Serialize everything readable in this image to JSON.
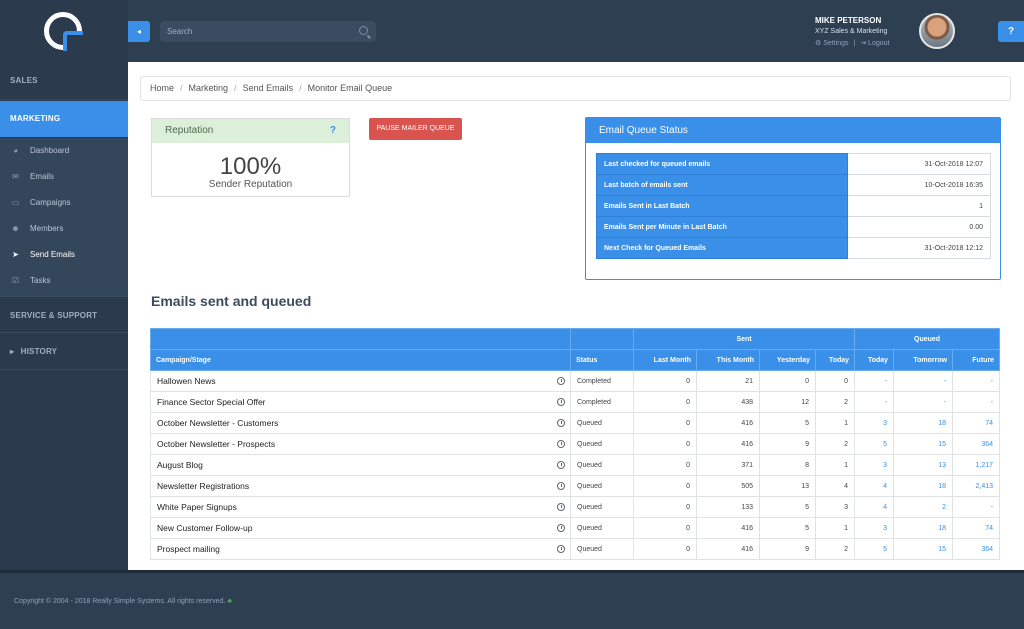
{
  "sidebar": {
    "sections": {
      "sales": "SALES",
      "marketing": "MARKETING",
      "service": "SERVICE & SUPPORT",
      "history": "HISTORY"
    },
    "items": [
      {
        "label": "Dashboard",
        "icon": "dashboard-icon",
        "glyph": "◕"
      },
      {
        "label": "Emails",
        "icon": "envelope-icon",
        "glyph": "✉"
      },
      {
        "label": "Campaigns",
        "icon": "inbox-icon",
        "glyph": "▭"
      },
      {
        "label": "Members",
        "icon": "users-icon",
        "glyph": "☻"
      },
      {
        "label": "Send Emails",
        "icon": "send-icon",
        "glyph": "➤"
      },
      {
        "label": "Tasks",
        "icon": "checkbox-icon",
        "glyph": "☑"
      }
    ],
    "active_item": "Send Emails",
    "history_chevron": "▸"
  },
  "topbar": {
    "collapse_glyph": "◂",
    "search_placeholder": "Search",
    "user_name": "MIKE PETERSON",
    "company": "XYZ Sales & Marketing",
    "settings_label": "⚙ Settings",
    "divider": "|",
    "logout_label": "⇥ Logout",
    "help_glyph": "?"
  },
  "breadcrumb": {
    "items": [
      "Home",
      "Marketing",
      "Send Emails",
      "Monitor Email Queue"
    ],
    "separator": "/"
  },
  "reputation": {
    "title": "Reputation",
    "help": "?",
    "value": "100%",
    "label": "Sender Reputation"
  },
  "pause_button": "PAUSE MAILER QUEUE",
  "email_queue_status": {
    "title": "Email Queue Status",
    "rows": [
      {
        "key": "Last checked for queued emails",
        "value": "31-Oct-2018 12:07"
      },
      {
        "key": "Last batch of emails sent",
        "value": "10-Oct-2018 16:35"
      },
      {
        "key": "Emails Sent in Last Batch",
        "value": "1"
      },
      {
        "key": "Emails Sent per Minute in Last Batch",
        "value": "0.00"
      },
      {
        "key": "Next Check for Queued Emails",
        "value": "31-Oct-2018 12:12"
      }
    ]
  },
  "section_title": "Emails sent and queued",
  "queue_table": {
    "group_headers": {
      "sent": "Sent",
      "queued": "Queued"
    },
    "headers": {
      "campaign": "Campaign/Stage",
      "status": "Status",
      "last_month": "Last Month",
      "this_month": "This Month",
      "yesterday": "Yesterday",
      "today": "Today",
      "q_today": "Today",
      "q_tomorrow": "Tomorrow",
      "q_future": "Future"
    },
    "rows": [
      {
        "name": "Hallowen News",
        "status": "Completed",
        "last_month": "0",
        "this_month": "21",
        "yesterday": "0",
        "today": "0",
        "q_today": "-",
        "q_tomorrow": "-",
        "q_future": "-"
      },
      {
        "name": "Finance Sector Special Offer",
        "status": "Completed",
        "last_month": "0",
        "this_month": "438",
        "yesterday": "12",
        "today": "2",
        "q_today": "-",
        "q_tomorrow": "-",
        "q_future": "-"
      },
      {
        "name": "October Newsletter - Customers",
        "status": "Queued",
        "last_month": "0",
        "this_month": "416",
        "yesterday": "5",
        "today": "1",
        "q_today": "3",
        "q_tomorrow": "18",
        "q_future": "74"
      },
      {
        "name": "October Newsletter - Prospects",
        "status": "Queued",
        "last_month": "0",
        "this_month": "416",
        "yesterday": "9",
        "today": "2",
        "q_today": "5",
        "q_tomorrow": "15",
        "q_future": "364"
      },
      {
        "name": "August Blog",
        "status": "Queued",
        "last_month": "0",
        "this_month": "371",
        "yesterday": "8",
        "today": "1",
        "q_today": "3",
        "q_tomorrow": "13",
        "q_future": "1,217"
      },
      {
        "name": "Newsletter Registrations",
        "status": "Queued",
        "last_month": "0",
        "this_month": "505",
        "yesterday": "13",
        "today": "4",
        "q_today": "4",
        "q_tomorrow": "18",
        "q_future": "2,413"
      },
      {
        "name": "White Paper Signups",
        "status": "Queued",
        "last_month": "0",
        "this_month": "133",
        "yesterday": "5",
        "today": "3",
        "q_today": "4",
        "q_tomorrow": "2",
        "q_future": "-"
      },
      {
        "name": "New Customer Follow-up",
        "status": "Queued",
        "last_month": "0",
        "this_month": "416",
        "yesterday": "5",
        "today": "1",
        "q_today": "3",
        "q_tomorrow": "18",
        "q_future": "74"
      },
      {
        "name": "Prospect mailing",
        "status": "Queued",
        "last_month": "0",
        "this_month": "416",
        "yesterday": "9",
        "today": "2",
        "q_today": "5",
        "q_tomorrow": "15",
        "q_future": "364"
      }
    ]
  },
  "footer": {
    "copyright": "Copyright © 2004 - 2018 Really Simple Systems. All rights reserved.",
    "leaf": "♣"
  },
  "colors": {
    "accent": "#3a8fe8",
    "sidebar": "#2b3a4c",
    "danger": "#d9534f",
    "completed": "#3c8a3c"
  }
}
